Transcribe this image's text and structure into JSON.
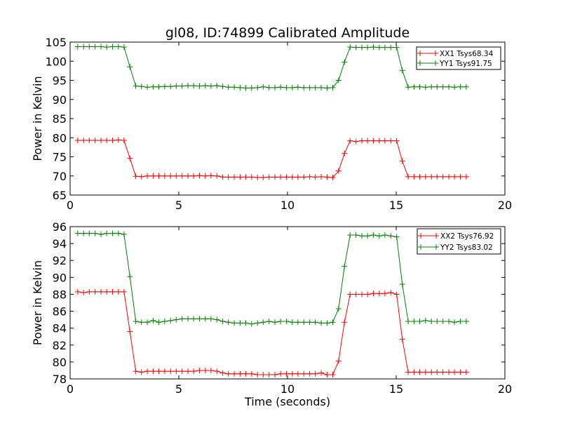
{
  "title": "gl08, ID:74899 Calibrated Amplitude",
  "chart_data": [
    {
      "type": "line",
      "title": "gl08, ID:74899 Calibrated Amplitude",
      "xlabel": "",
      "ylabel": "Power in Kelvin",
      "xlim": [
        0,
        20
      ],
      "ylim": [
        65,
        105
      ],
      "xticks": [
        "0",
        "5",
        "10",
        "15",
        "20"
      ],
      "yticks": [
        "65",
        "70",
        "75",
        "80",
        "85",
        "90",
        "95",
        "100",
        "105"
      ],
      "legend_position": "top-right",
      "x": [
        0.35,
        0.62,
        0.88,
        1.15,
        1.42,
        1.68,
        1.95,
        2.22,
        2.48,
        2.75,
        3.02,
        3.28,
        3.55,
        3.82,
        4.08,
        4.35,
        4.62,
        4.88,
        5.15,
        5.42,
        5.68,
        5.95,
        6.22,
        6.48,
        6.75,
        7.02,
        7.28,
        7.55,
        7.82,
        8.08,
        8.35,
        8.62,
        8.88,
        9.15,
        9.42,
        9.68,
        9.95,
        10.22,
        10.48,
        10.75,
        11.02,
        11.28,
        11.55,
        11.82,
        12.08,
        12.35,
        12.62,
        12.88,
        13.15,
        13.42,
        13.68,
        13.95,
        14.22,
        14.48,
        14.75,
        15.02,
        15.28,
        15.55,
        15.82,
        16.08,
        16.35,
        16.62,
        16.88,
        17.15,
        17.42,
        17.68,
        17.95,
        18.22
      ],
      "series": [
        {
          "name": "XX1 Tsys68.34",
          "color": "#ff0000",
          "values": [
            79.3,
            79.3,
            79.3,
            79.3,
            79.3,
            79.3,
            79.3,
            79.4,
            79.3,
            74.6,
            69.9,
            69.8,
            70.0,
            70.0,
            70.0,
            70.0,
            70.0,
            70.0,
            70.0,
            70.0,
            70.0,
            70.1,
            70.0,
            70.1,
            70.0,
            69.7,
            69.7,
            69.7,
            69.7,
            69.7,
            69.7,
            69.6,
            69.6,
            69.7,
            69.7,
            69.7,
            69.7,
            69.7,
            69.7,
            69.7,
            69.8,
            69.7,
            69.8,
            69.7,
            69.6,
            71.3,
            75.9,
            79.2,
            79.0,
            79.2,
            79.2,
            79.2,
            79.2,
            79.2,
            79.2,
            79.2,
            73.9,
            69.8,
            69.8,
            69.8,
            69.8,
            69.8,
            69.8,
            69.8,
            69.8,
            69.8,
            69.8,
            69.8
          ]
        },
        {
          "name": "YY1 Tsys91.75",
          "color": "#008000",
          "values": [
            103.8,
            103.8,
            103.8,
            103.8,
            103.8,
            103.7,
            103.8,
            103.8,
            103.7,
            98.5,
            93.5,
            93.4,
            93.2,
            93.3,
            93.3,
            93.4,
            93.4,
            93.5,
            93.5,
            93.6,
            93.6,
            93.5,
            93.6,
            93.5,
            93.6,
            93.4,
            93.2,
            93.2,
            93.1,
            93.0,
            93.0,
            93.1,
            93.3,
            93.1,
            93.1,
            93.2,
            93.1,
            93.1,
            93.2,
            93.1,
            93.1,
            93.1,
            93.1,
            93.0,
            93.1,
            95.0,
            99.8,
            103.7,
            103.6,
            103.6,
            103.6,
            103.7,
            103.6,
            103.6,
            103.6,
            103.6,
            97.6,
            93.2,
            93.3,
            93.3,
            93.2,
            93.3,
            93.3,
            93.3,
            93.3,
            93.2,
            93.3,
            93.3
          ]
        }
      ]
    },
    {
      "type": "line",
      "title": "",
      "xlabel": "Time (seconds)",
      "ylabel": "Power in Kelvin",
      "xlim": [
        0,
        20
      ],
      "ylim": [
        78,
        96
      ],
      "xticks": [
        "0",
        "5",
        "10",
        "15",
        "20"
      ],
      "yticks": [
        "78",
        "80",
        "82",
        "84",
        "86",
        "88",
        "90",
        "92",
        "94",
        "96"
      ],
      "legend_position": "top-right",
      "x": [
        0.35,
        0.62,
        0.88,
        1.15,
        1.42,
        1.68,
        1.95,
        2.22,
        2.48,
        2.75,
        3.02,
        3.28,
        3.55,
        3.82,
        4.08,
        4.35,
        4.62,
        4.88,
        5.15,
        5.42,
        5.68,
        5.95,
        6.22,
        6.48,
        6.75,
        7.02,
        7.28,
        7.55,
        7.82,
        8.08,
        8.35,
        8.62,
        8.88,
        9.15,
        9.42,
        9.68,
        9.95,
        10.22,
        10.48,
        10.75,
        11.02,
        11.28,
        11.55,
        11.82,
        12.08,
        12.35,
        12.62,
        12.88,
        13.15,
        13.42,
        13.68,
        13.95,
        14.22,
        14.48,
        14.75,
        15.02,
        15.28,
        15.55,
        15.82,
        16.08,
        16.35,
        16.62,
        16.88,
        17.15,
        17.42,
        17.68,
        17.95,
        18.22
      ],
      "series": [
        {
          "name": "XX2 Tsys76.92",
          "color": "#ff0000",
          "values": [
            88.3,
            88.2,
            88.3,
            88.3,
            88.3,
            88.3,
            88.3,
            88.3,
            88.3,
            83.6,
            78.9,
            78.8,
            78.9,
            78.9,
            78.9,
            78.9,
            78.9,
            78.9,
            78.9,
            78.9,
            78.9,
            79.0,
            79.0,
            79.0,
            78.9,
            78.7,
            78.6,
            78.6,
            78.6,
            78.6,
            78.6,
            78.5,
            78.5,
            78.5,
            78.5,
            78.6,
            78.6,
            78.6,
            78.6,
            78.6,
            78.6,
            78.6,
            78.7,
            78.5,
            78.5,
            80.1,
            84.7,
            88.0,
            88.0,
            88.0,
            88.0,
            88.1,
            88.1,
            88.1,
            88.2,
            88.0,
            82.7,
            78.8,
            78.8,
            78.8,
            78.8,
            78.8,
            78.8,
            78.8,
            78.8,
            78.8,
            78.8,
            78.8
          ]
        },
        {
          "name": "YY2 Tsys83.02",
          "color": "#008000",
          "values": [
            95.2,
            95.2,
            95.2,
            95.2,
            95.1,
            95.2,
            95.2,
            95.2,
            95.1,
            90.1,
            84.8,
            84.7,
            84.7,
            84.9,
            84.7,
            84.8,
            84.9,
            85.0,
            85.1,
            85.1,
            85.1,
            85.1,
            85.1,
            85.1,
            85.0,
            84.8,
            84.7,
            84.6,
            84.6,
            84.6,
            84.5,
            84.6,
            84.7,
            84.8,
            84.7,
            84.8,
            84.8,
            84.7,
            84.7,
            84.7,
            84.7,
            84.7,
            84.6,
            84.6,
            84.7,
            86.3,
            91.3,
            95.0,
            95.0,
            94.9,
            94.9,
            95.0,
            94.9,
            95.0,
            94.9,
            94.8,
            89.2,
            84.8,
            84.8,
            84.8,
            84.9,
            84.8,
            84.8,
            84.8,
            84.8,
            84.7,
            84.8,
            84.8
          ]
        }
      ]
    }
  ]
}
